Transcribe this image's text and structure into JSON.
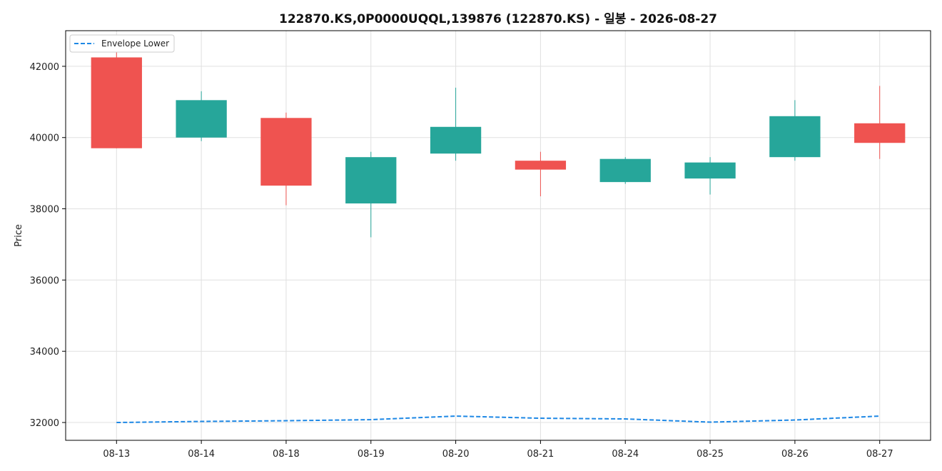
{
  "chart_data": {
    "type": "candlestick",
    "title": "122870.KS,0P0000UQQL,139876 (122870.KS) - 일봉 - 2026-08-27",
    "xlabel": "",
    "ylabel": "Price",
    "ylim": [
      31500,
      43000
    ],
    "yticks": [
      32000,
      34000,
      36000,
      38000,
      40000,
      42000
    ],
    "grid": true,
    "legend_position": "top-left",
    "categories": [
      "08-13",
      "08-14",
      "08-18",
      "08-19",
      "08-20",
      "08-21",
      "08-24",
      "08-25",
      "08-26",
      "08-27"
    ],
    "candles": [
      {
        "open": 42250,
        "high": 42450,
        "low": 39700,
        "close": 39700
      },
      {
        "open": 40000,
        "high": 41300,
        "low": 39900,
        "close": 41050
      },
      {
        "open": 40550,
        "high": 40700,
        "low": 38100,
        "close": 38650
      },
      {
        "open": 38150,
        "high": 39600,
        "low": 37200,
        "close": 39450
      },
      {
        "open": 39550,
        "high": 41400,
        "low": 39350,
        "close": 40300
      },
      {
        "open": 39350,
        "high": 39600,
        "low": 38350,
        "close": 39100
      },
      {
        "open": 38750,
        "high": 39450,
        "low": 38700,
        "close": 39400
      },
      {
        "open": 38850,
        "high": 39450,
        "low": 38400,
        "close": 39300
      },
      {
        "open": 39450,
        "high": 41050,
        "low": 39350,
        "close": 40600
      },
      {
        "open": 40400,
        "high": 41450,
        "low": 39400,
        "close": 39850
      }
    ],
    "series": [
      {
        "name": "Envelope Lower",
        "style": "dashed",
        "color": "#1e88e5",
        "values": [
          32000,
          32030,
          32050,
          32080,
          32180,
          32120,
          32100,
          32010,
          32070,
          32180
        ]
      }
    ],
    "colors": {
      "up": "#26a69a",
      "down": "#ef5350",
      "grid": "#e0e0e0",
      "axis": "#000000"
    }
  }
}
